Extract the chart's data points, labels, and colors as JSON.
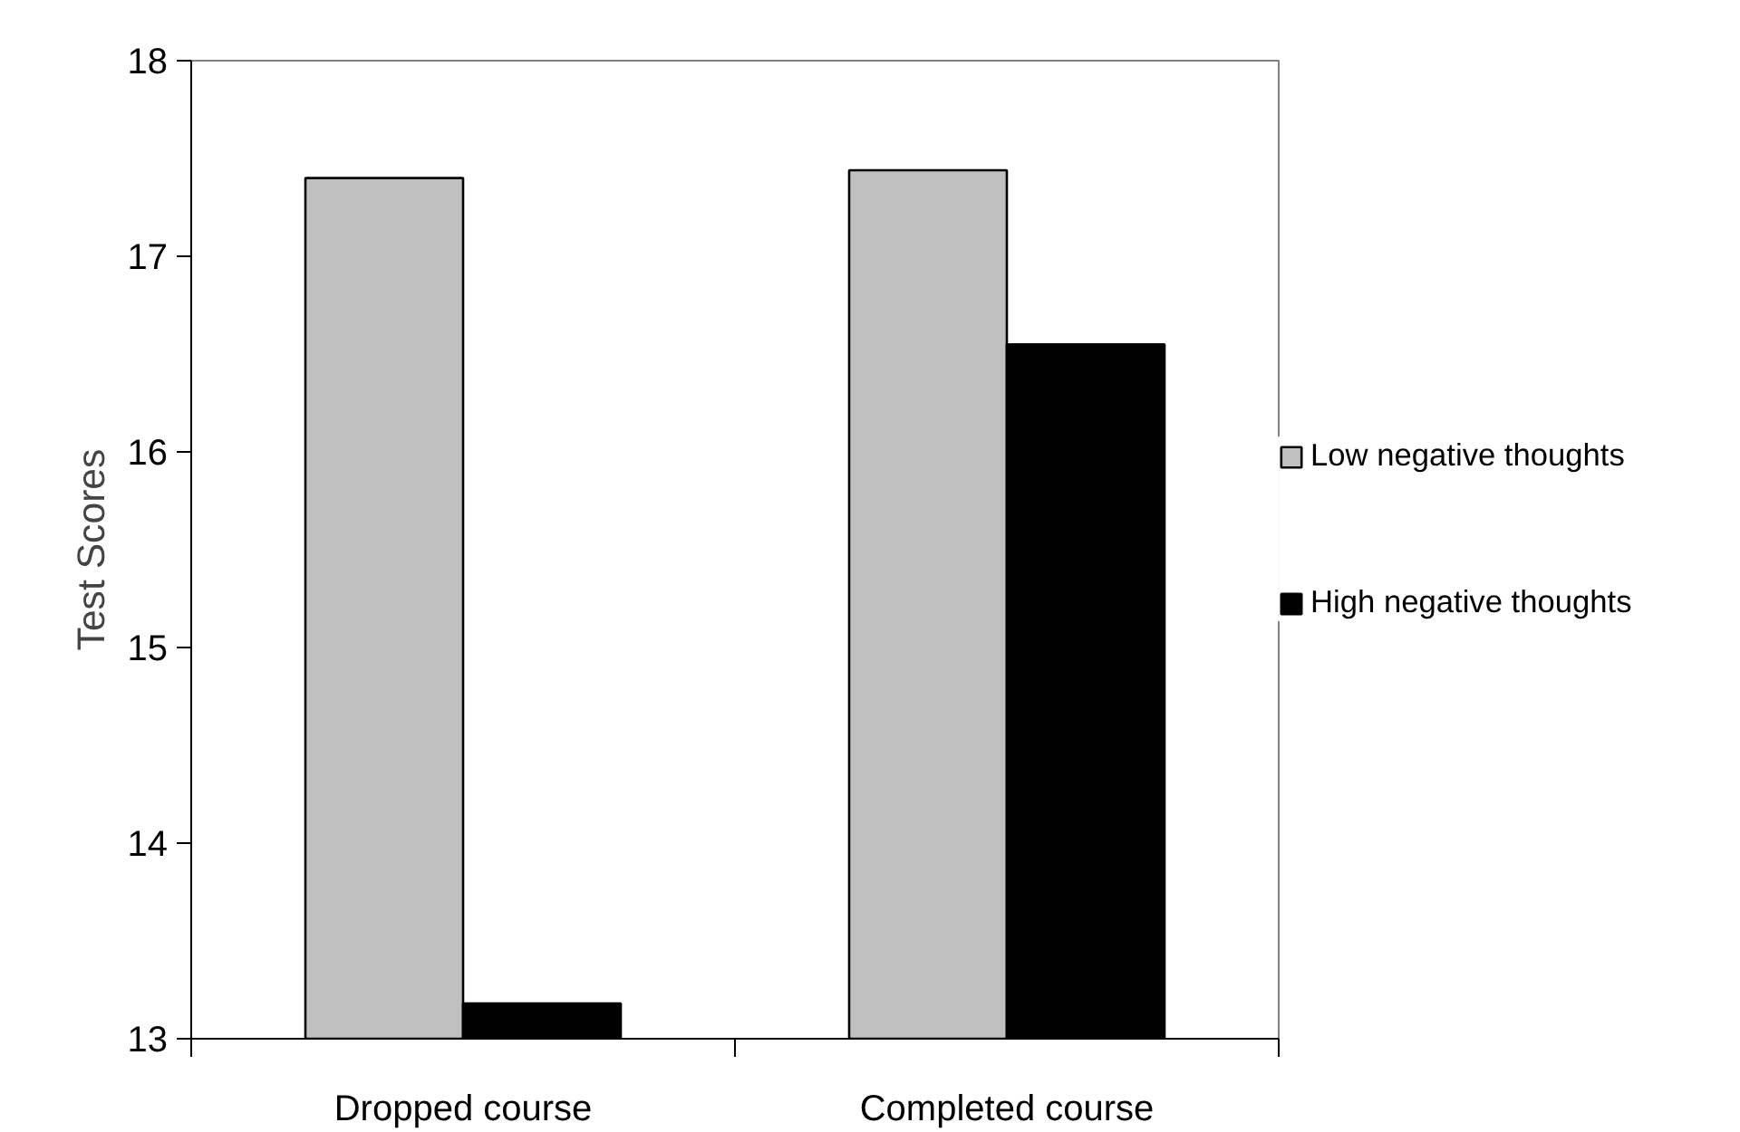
{
  "chart_data": {
    "type": "bar",
    "ylabel": "Test Scores",
    "categories": [
      "Dropped course",
      "Completed course"
    ],
    "series": [
      {
        "name": "Low negative thoughts",
        "color": "#c0c0c0",
        "values": [
          17.4,
          17.44
        ]
      },
      {
        "name": "High negative thoughts",
        "color": "#000000",
        "values": [
          13.18,
          16.55
        ]
      }
    ],
    "ylim": [
      13,
      18
    ],
    "yticks": [
      13,
      14,
      15,
      16,
      17,
      18
    ],
    "grid": false,
    "legend": "right"
  }
}
